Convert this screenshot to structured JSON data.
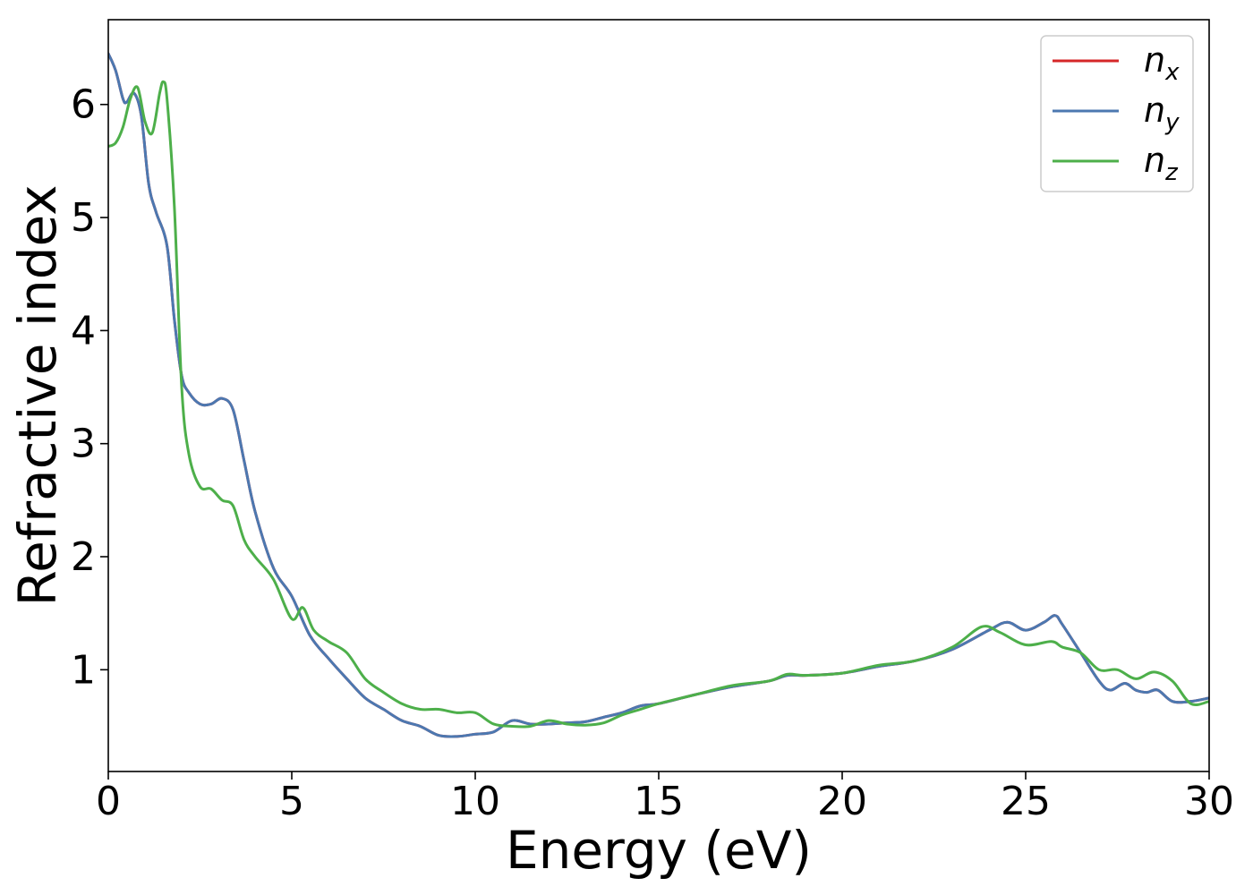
{
  "chart_data": {
    "type": "line",
    "xlabel": "Energy (eV)",
    "ylabel": "Refractive index",
    "xlim": [
      0,
      30
    ],
    "ylim": [
      0.1,
      6.75
    ],
    "xticks": [
      "0",
      "5",
      "10",
      "15",
      "20",
      "25",
      "30"
    ],
    "yticks": [
      "1",
      "2",
      "3",
      "4",
      "5",
      "6"
    ],
    "grid": false,
    "legend_position": "top-right",
    "series": [
      {
        "name": "n_x",
        "name_base": "n",
        "name_sub": "x",
        "color": "#d62728",
        "x": [
          0,
          0.2,
          0.4,
          0.5,
          0.7,
          0.9,
          1.1,
          1.3,
          1.6,
          1.8,
          2.0,
          2.2,
          2.5,
          2.8,
          3.1,
          3.4,
          3.7,
          4.0,
          4.5,
          5.0,
          5.5,
          6.0,
          6.5,
          7.0,
          7.5,
          8.0,
          8.5,
          9.0,
          9.5,
          10.0,
          10.5,
          11.0,
          11.5,
          12.0,
          12.5,
          13.0,
          13.5,
          14.0,
          14.5,
          15.0,
          16.0,
          17.0,
          18.0,
          18.5,
          19.0,
          20.0,
          21.0,
          22.0,
          23.0,
          24.0,
          24.5,
          25.0,
          25.5,
          25.8,
          26.0,
          26.5,
          27.0,
          27.3,
          27.7,
          28.0,
          28.3,
          28.6,
          29.0,
          29.5,
          30.0
        ],
        "y": [
          6.45,
          6.3,
          6.05,
          6.02,
          6.1,
          5.9,
          5.3,
          5.05,
          4.75,
          4.1,
          3.6,
          3.45,
          3.35,
          3.35,
          3.4,
          3.3,
          2.85,
          2.4,
          1.9,
          1.65,
          1.3,
          1.1,
          0.92,
          0.75,
          0.65,
          0.55,
          0.5,
          0.42,
          0.41,
          0.43,
          0.45,
          0.55,
          0.52,
          0.52,
          0.53,
          0.54,
          0.58,
          0.62,
          0.68,
          0.7,
          0.78,
          0.85,
          0.9,
          0.95,
          0.95,
          0.97,
          1.03,
          1.08,
          1.18,
          1.35,
          1.42,
          1.35,
          1.42,
          1.48,
          1.4,
          1.15,
          0.9,
          0.82,
          0.88,
          0.82,
          0.8,
          0.82,
          0.72,
          0.72,
          0.75
        ]
      },
      {
        "name": "n_y",
        "name_base": "n",
        "name_sub": "y",
        "color": "#4c78b0",
        "x": [
          0,
          0.2,
          0.4,
          0.5,
          0.7,
          0.9,
          1.1,
          1.3,
          1.6,
          1.8,
          2.0,
          2.2,
          2.5,
          2.8,
          3.1,
          3.4,
          3.7,
          4.0,
          4.5,
          5.0,
          5.5,
          6.0,
          6.5,
          7.0,
          7.5,
          8.0,
          8.5,
          9.0,
          9.5,
          10.0,
          10.5,
          11.0,
          11.5,
          12.0,
          12.5,
          13.0,
          13.5,
          14.0,
          14.5,
          15.0,
          16.0,
          17.0,
          18.0,
          18.5,
          19.0,
          20.0,
          21.0,
          22.0,
          23.0,
          24.0,
          24.5,
          25.0,
          25.5,
          25.8,
          26.0,
          26.5,
          27.0,
          27.3,
          27.7,
          28.0,
          28.3,
          28.6,
          29.0,
          29.5,
          30.0
        ],
        "y": [
          6.45,
          6.3,
          6.05,
          6.02,
          6.1,
          5.9,
          5.3,
          5.05,
          4.75,
          4.1,
          3.6,
          3.45,
          3.35,
          3.35,
          3.4,
          3.3,
          2.85,
          2.4,
          1.9,
          1.65,
          1.3,
          1.1,
          0.92,
          0.75,
          0.65,
          0.55,
          0.5,
          0.42,
          0.41,
          0.43,
          0.45,
          0.55,
          0.52,
          0.52,
          0.53,
          0.54,
          0.58,
          0.62,
          0.68,
          0.7,
          0.78,
          0.85,
          0.9,
          0.95,
          0.95,
          0.97,
          1.03,
          1.08,
          1.18,
          1.35,
          1.42,
          1.35,
          1.42,
          1.48,
          1.4,
          1.15,
          0.9,
          0.82,
          0.88,
          0.82,
          0.8,
          0.82,
          0.72,
          0.72,
          0.75
        ]
      },
      {
        "name": "n_z",
        "name_base": "n",
        "name_sub": "z",
        "color": "#4daf4a",
        "x": [
          0,
          0.2,
          0.4,
          0.6,
          0.8,
          1.0,
          1.2,
          1.4,
          1.5,
          1.6,
          1.8,
          2.0,
          2.2,
          2.5,
          2.8,
          3.1,
          3.4,
          3.7,
          4.0,
          4.5,
          5.0,
          5.3,
          5.6,
          6.0,
          6.5,
          7.0,
          7.5,
          8.0,
          8.5,
          9.0,
          9.5,
          10.0,
          10.5,
          11.0,
          11.5,
          12.0,
          12.5,
          13.0,
          13.5,
          14.0,
          14.5,
          15.0,
          16.0,
          17.0,
          18.0,
          18.5,
          19.0,
          20.0,
          21.0,
          22.0,
          23.0,
          23.8,
          24.3,
          25.0,
          25.7,
          26.0,
          26.5,
          27.0,
          27.5,
          28.0,
          28.5,
          29.0,
          29.5,
          30.0
        ],
        "y": [
          5.63,
          5.66,
          5.8,
          6.05,
          6.15,
          5.85,
          5.75,
          6.1,
          6.2,
          6.05,
          5.1,
          3.5,
          2.9,
          2.62,
          2.6,
          2.5,
          2.45,
          2.15,
          2.0,
          1.8,
          1.45,
          1.55,
          1.35,
          1.25,
          1.15,
          0.92,
          0.8,
          0.7,
          0.65,
          0.65,
          0.62,
          0.62,
          0.52,
          0.5,
          0.5,
          0.55,
          0.52,
          0.51,
          0.53,
          0.6,
          0.65,
          0.7,
          0.78,
          0.86,
          0.9,
          0.96,
          0.95,
          0.97,
          1.04,
          1.08,
          1.2,
          1.38,
          1.33,
          1.22,
          1.25,
          1.2,
          1.15,
          1.0,
          1.0,
          0.92,
          0.98,
          0.9,
          0.7,
          0.72
        ]
      }
    ]
  }
}
